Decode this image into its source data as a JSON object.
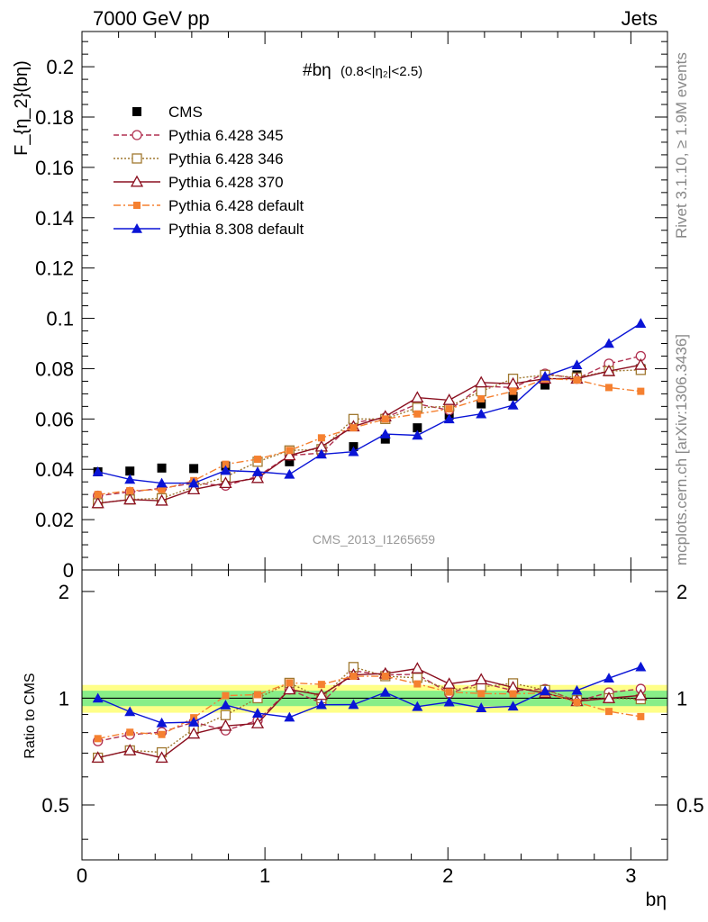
{
  "header": {
    "left": "7000 GeV pp",
    "right": "Jets"
  },
  "side_text": {
    "rivet": "Rivet 3.1.10, ≥ 1.9M events",
    "mcplots": "mcplots.cern.ch [arXiv:1306.3436]"
  },
  "chart_data": {
    "type": "line",
    "title": "#bη",
    "title_sub": "(0.8<|η₂|<2.5)",
    "watermark": "CMS_2013_I1265659",
    "xlabel": "bη",
    "ylabel": "F_{η_2}(bη)",
    "ratio_ylabel": "Ratio to CMS",
    "xlim": [
      0,
      3.2
    ],
    "ylim": [
      0,
      0.214
    ],
    "ratio_ylim": [
      0.35,
      2.3
    ],
    "x_ticks": [
      0,
      1,
      2,
      3
    ],
    "y_ticks": [
      0,
      0.02,
      0.04,
      0.06,
      0.08,
      0.1,
      0.12,
      0.14,
      0.16,
      0.18,
      0.2
    ],
    "y_tick_labels": [
      "0",
      "0.02",
      "0.04",
      "0.06",
      "0.08",
      "0.1",
      "0.12",
      "0.14",
      "0.16",
      "0.18",
      "0.2"
    ],
    "ratio_ticks": [
      0.5,
      1,
      2
    ],
    "ratio_tick_labels": [
      "0.5",
      "1",
      "2"
    ],
    "x": [
      0.087,
      0.262,
      0.436,
      0.611,
      0.785,
      0.96,
      1.134,
      1.309,
      1.484,
      1.658,
      1.833,
      2.007,
      2.182,
      2.356,
      2.531,
      2.705,
      2.88,
      3.054
    ],
    "legend_position": "top-left",
    "series": [
      {
        "name": "CMS",
        "style": "data",
        "color": "#000000",
        "marker": "square",
        "values": [
          0.039,
          0.0393,
          0.0405,
          0.0403,
          0.0413,
          0.043,
          0.043,
          0.048,
          0.049,
          0.052,
          0.0565,
          0.0615,
          0.066,
          0.069,
          0.0735,
          0.0775,
          0.079,
          0.08
        ]
      },
      {
        "name": "Pythia 6.428 345",
        "style": "dashed",
        "color": "#b03050",
        "marker": "open-circle",
        "values": [
          0.0295,
          0.031,
          0.0325,
          0.0345,
          0.0335,
          0.0372,
          0.0455,
          0.0465,
          0.0585,
          0.0605,
          0.066,
          0.0635,
          0.073,
          0.0725,
          0.078,
          0.076,
          0.082,
          0.085
        ]
      },
      {
        "name": "Pythia 6.428 346",
        "style": "dotted",
        "color": "#a07830",
        "marker": "open-square",
        "values": [
          0.0265,
          0.028,
          0.0285,
          0.033,
          0.037,
          0.043,
          0.0475,
          0.048,
          0.06,
          0.06,
          0.0645,
          0.065,
          0.071,
          0.076,
          0.0775,
          0.0765,
          0.079,
          0.0795
        ]
      },
      {
        "name": "Pythia 6.428 370",
        "style": "solid",
        "color": "#8b1020",
        "marker": "open-triangle",
        "values": [
          0.0265,
          0.028,
          0.0275,
          0.032,
          0.0345,
          0.0365,
          0.0455,
          0.049,
          0.057,
          0.061,
          0.0685,
          0.0675,
          0.0745,
          0.074,
          0.076,
          0.076,
          0.079,
          0.0815
        ]
      },
      {
        "name": "Pythia 6.428 default",
        "style": "dashdot",
        "color": "#f58030",
        "marker": "filled-square",
        "values": [
          0.03,
          0.0315,
          0.032,
          0.0355,
          0.042,
          0.044,
          0.0475,
          0.0525,
          0.0565,
          0.06,
          0.062,
          0.064,
          0.068,
          0.071,
          0.076,
          0.0755,
          0.0725,
          0.071
        ]
      },
      {
        "name": "Pythia 8.308 default",
        "style": "solid",
        "color": "#0a14d6",
        "marker": "filled-triangle",
        "values": [
          0.039,
          0.036,
          0.0345,
          0.0345,
          0.0395,
          0.039,
          0.038,
          0.046,
          0.047,
          0.054,
          0.0535,
          0.06,
          0.062,
          0.0655,
          0.077,
          0.0815,
          0.09,
          0.098
        ]
      }
    ],
    "ratio_band": {
      "inner_color": "#88ee88",
      "outer_color": "#ffff88",
      "inner_halfwidth": 0.05,
      "outer_halfwidth": 0.09
    }
  }
}
